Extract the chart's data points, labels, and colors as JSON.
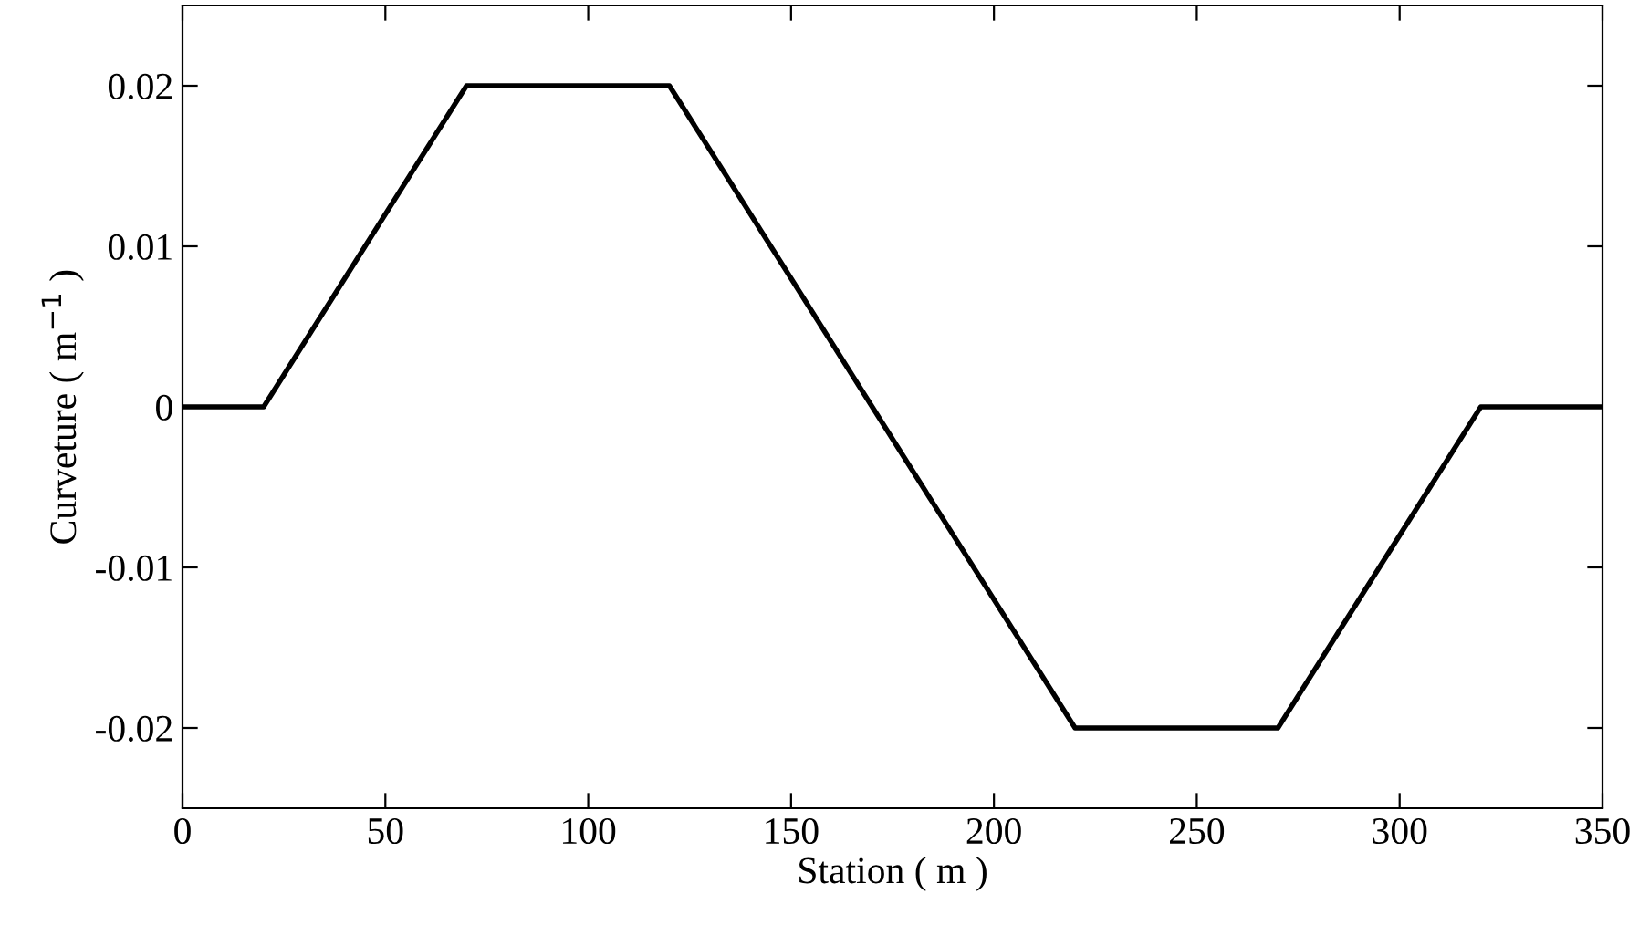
{
  "chart_data": {
    "type": "line",
    "xlabel": "Station ( m )",
    "ylabel": "Curveture ( m$^{−1}$ )",
    "x": [
      0,
      20,
      70,
      120,
      220,
      270,
      320,
      350
    ],
    "series": [
      {
        "color": "#000000",
        "values": [
          0,
          0,
          0.02,
          0.02,
          -0.02,
          -0.02,
          0,
          0
        ]
      }
    ],
    "xlim": [
      0,
      350
    ],
    "xticks": [
      0,
      50,
      100,
      150,
      200,
      250,
      300,
      350
    ],
    "ylim": [
      -0.025,
      0.025
    ],
    "yticks": [
      -0.02,
      -0.01,
      0,
      0.01,
      0.02
    ],
    "grid": false,
    "legend": false,
    "marker": "none",
    "line_style": "solid"
  }
}
